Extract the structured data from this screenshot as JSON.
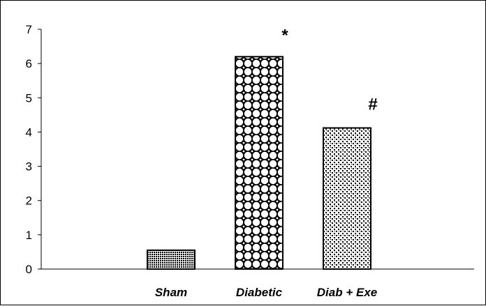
{
  "chart_data": {
    "type": "bar",
    "categories": [
      "Sham",
      "Diabetic",
      "Diab + Exe"
    ],
    "values": [
      0.55,
      6.2,
      4.12
    ],
    "annotations": [
      "",
      "*",
      "#"
    ],
    "patterns": [
      "dense-dots",
      "checker-diamond",
      "sparse-dots"
    ],
    "title": "",
    "xlabel": "",
    "ylabel": "",
    "ylim": [
      0,
      7
    ],
    "yticks": [
      0,
      1,
      2,
      3,
      4,
      5,
      6,
      7
    ],
    "grid": false,
    "legend": "none"
  },
  "colors": {
    "bar_fill": "#ffffff",
    "pattern": "#000000",
    "axis": "#000000",
    "background": "#ffffff"
  }
}
